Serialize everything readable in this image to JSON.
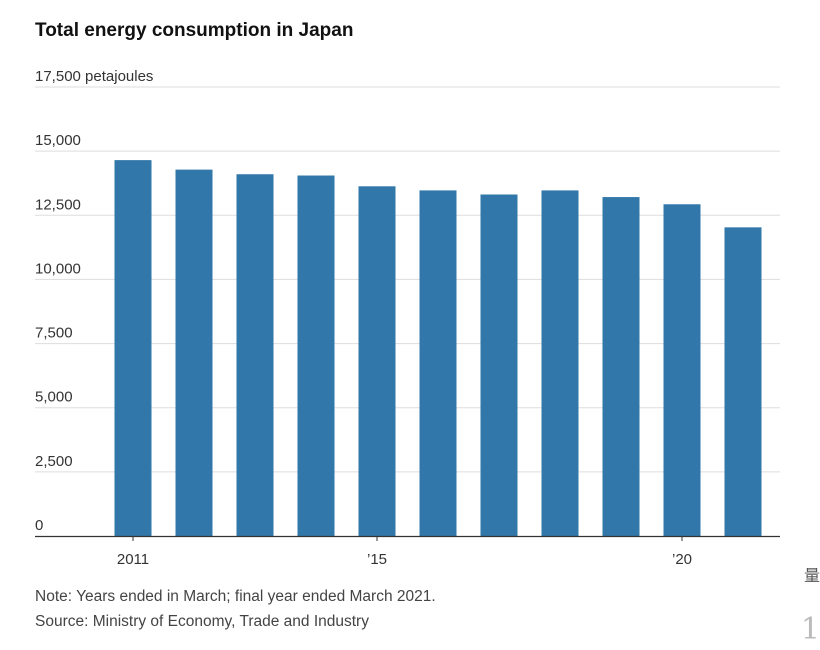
{
  "title": "Total energy consumption in Japan",
  "notes": {
    "note": "Note: Years ended in March; final year ended March 2021.",
    "source": "Source: Ministry of Economy, Trade and Industry"
  },
  "edge_fragments": [
    "量",
    "1"
  ],
  "colors": {
    "bar": "#3277aa",
    "grid": "#dddddd",
    "axis": "#333333"
  },
  "chart_data": {
    "type": "bar",
    "title": "Total energy consumption in Japan",
    "unit": "petajoules",
    "categories": [
      "2011",
      "2012",
      "2013",
      "2014",
      "2015",
      "2016",
      "2017",
      "2018",
      "2019",
      "2020",
      "2021"
    ],
    "values": [
      14650,
      14280,
      14100,
      14050,
      13630,
      13470,
      13310,
      13470,
      13210,
      12930,
      12030
    ],
    "ylim": [
      0,
      17500
    ],
    "yticks": [
      0,
      2500,
      5000,
      7500,
      10000,
      12500,
      15000,
      17500
    ],
    "ytick_labels": [
      "0",
      "2,500",
      "5,000",
      "7,500",
      "10,000",
      "12,500",
      "15,000",
      "17,500 petajoules"
    ],
    "xtick_labels": [
      {
        "category": "2011",
        "label": "2011"
      },
      {
        "category": "2015",
        "label": "’15"
      },
      {
        "category": "2020",
        "label": "’20"
      }
    ],
    "grid": true,
    "legend": "none"
  }
}
